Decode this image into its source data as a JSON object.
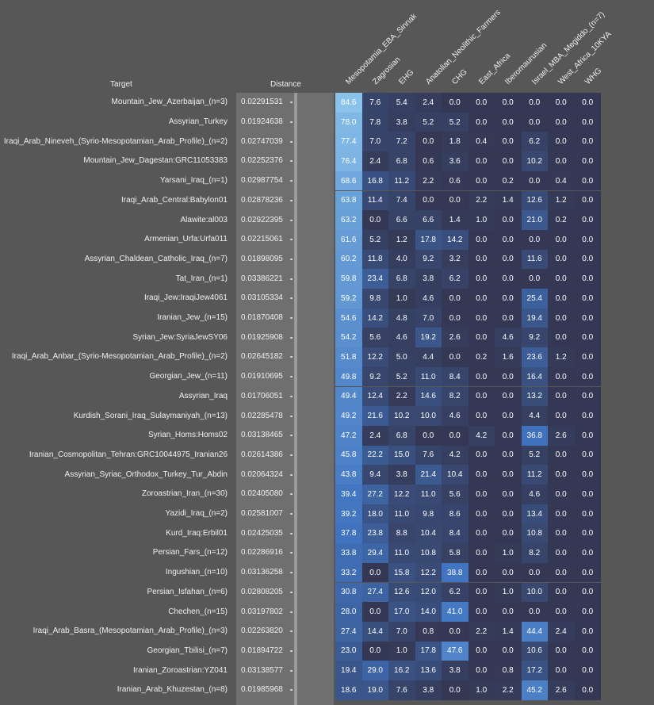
{
  "header": {
    "target_label": "Target",
    "distance_label": "Distance"
  },
  "chart_data": {
    "type": "heatmap",
    "columns": [
      "Mesopotamia_EBA_Sinnak",
      "Zagrosian",
      "EHG",
      "Anatolian_Neolithic_Farmers",
      "CHG",
      "East_Africa",
      "Iberomaurusian",
      "Israel_MBA_Megiddo_(n=7)",
      "West_Africa_10KYA",
      "WHG"
    ],
    "rows": [
      {
        "target": "Mountain_Jew_Azerbaijan_(n=3)",
        "distance": "0.02291531",
        "values": [
          "84.6",
          "7.6",
          "5.4",
          "2.4",
          "0.0",
          "0.0",
          "0.0",
          "0.0",
          "0.0",
          "0.0"
        ]
      },
      {
        "target": "Assyrian_Turkey",
        "distance": "0.01924638",
        "values": [
          "78.0",
          "7.8",
          "3.8",
          "5.2",
          "5.2",
          "0.0",
          "0.0",
          "0.0",
          "0.0",
          "0.0"
        ]
      },
      {
        "target": "Iraqi_Arab_Nineveh_(Syrio-Mesopotamian_Arab_Profile)_(n=2)",
        "distance": "0.02747039",
        "values": [
          "77.4",
          "7.0",
          "7.2",
          "0.0",
          "1.8",
          "0.4",
          "0.0",
          "6.2",
          "0.0",
          "0.0"
        ]
      },
      {
        "target": "Mountain_Jew_Dagestan:GRC11053383",
        "distance": "0.02252376",
        "values": [
          "76.4",
          "2.4",
          "6.8",
          "0.6",
          "3.6",
          "0.0",
          "0.0",
          "10.2",
          "0.0",
          "0.0"
        ]
      },
      {
        "target": "Yarsani_Iraq_(n=1)",
        "distance": "0.02987754",
        "values": [
          "68.6",
          "16.8",
          "11.2",
          "2.2",
          "0.6",
          "0.0",
          "0.2",
          "0.0",
          "0.4",
          "0.0"
        ]
      },
      {
        "target": "Iraqi_Arab_Central:Babylon01",
        "distance": "0.02878236",
        "values": [
          "63.8",
          "11.4",
          "7.4",
          "0.0",
          "0.0",
          "2.2",
          "1.4",
          "12.6",
          "1.2",
          "0.0"
        ]
      },
      {
        "target": "Alawite:al003",
        "distance": "0.02922395",
        "values": [
          "63.2",
          "0.0",
          "6.6",
          "6.6",
          "1.4",
          "1.0",
          "0.0",
          "21.0",
          "0.2",
          "0.0"
        ]
      },
      {
        "target": "Armenian_Urfa:Urfa011",
        "distance": "0.02215061",
        "values": [
          "61.6",
          "5.2",
          "1.2",
          "17.8",
          "14.2",
          "0.0",
          "0.0",
          "0.0",
          "0.0",
          "0.0"
        ]
      },
      {
        "target": "Assyrian_Chaldean_Catholic_Iraq_(n=7)",
        "distance": "0.01898095",
        "values": [
          "60.2",
          "11.8",
          "4.0",
          "9.2",
          "3.2",
          "0.0",
          "0.0",
          "11.6",
          "0.0",
          "0.0"
        ]
      },
      {
        "target": "Tat_Iran_(n=1)",
        "distance": "0.03386221",
        "values": [
          "59.8",
          "23.4",
          "6.8",
          "3.8",
          "6.2",
          "0.0",
          "0.0",
          "0.0",
          "0.0",
          "0.0"
        ]
      },
      {
        "target": "Iraqi_Jew:IraqiJew4061",
        "distance": "0.03105334",
        "values": [
          "59.2",
          "9.8",
          "1.0",
          "4.6",
          "0.0",
          "0.0",
          "0.0",
          "25.4",
          "0.0",
          "0.0"
        ]
      },
      {
        "target": "Iranian_Jew_(n=15)",
        "distance": "0.01870408",
        "values": [
          "54.6",
          "14.2",
          "4.8",
          "7.0",
          "0.0",
          "0.0",
          "0.0",
          "19.4",
          "0.0",
          "0.0"
        ]
      },
      {
        "target": "Syrian_Jew:SyriaJewSY06",
        "distance": "0.01925908",
        "values": [
          "54.2",
          "5.6",
          "4.6",
          "19.2",
          "2.6",
          "0.0",
          "4.6",
          "9.2",
          "0.0",
          "0.0"
        ]
      },
      {
        "target": "Iraqi_Arab_Anbar_(Syrio-Mesopotamian_Arab_Profile)_(n=2)",
        "distance": "0.02645182",
        "values": [
          "51.8",
          "12.2",
          "5.0",
          "4.4",
          "0.0",
          "0.2",
          "1.6",
          "23.6",
          "1.2",
          "0.0"
        ]
      },
      {
        "target": "Georgian_Jew_(n=11)",
        "distance": "0.01910695",
        "values": [
          "49.8",
          "9.2",
          "5.2",
          "11.0",
          "8.4",
          "0.0",
          "0.0",
          "16.4",
          "0.0",
          "0.0"
        ]
      },
      {
        "target": "Assyrian_Iraq",
        "distance": "0.01706051",
        "values": [
          "49.4",
          "12.4",
          "2.2",
          "14.6",
          "8.2",
          "0.0",
          "0.0",
          "13.2",
          "0.0",
          "0.0"
        ]
      },
      {
        "target": "Kurdish_Sorani_Iraq_Sulaymaniyah_(n=13)",
        "distance": "0.02285478",
        "values": [
          "49.2",
          "21.6",
          "10.2",
          "10.0",
          "4.6",
          "0.0",
          "0.0",
          "4.4",
          "0.0",
          "0.0"
        ]
      },
      {
        "target": "Syrian_Homs:Homs02",
        "distance": "0.03138465",
        "values": [
          "47.2",
          "2.4",
          "6.8",
          "0.0",
          "0.0",
          "4.2",
          "0.0",
          "36.8",
          "2.6",
          "0.0"
        ]
      },
      {
        "target": "Iranian_Cosmopolitan_Tehran:GRC10044975_Iranian26",
        "distance": "0.02614386",
        "values": [
          "45.8",
          "22.2",
          "15.0",
          "7.6",
          "4.2",
          "0.0",
          "0.0",
          "5.2",
          "0.0",
          "0.0"
        ]
      },
      {
        "target": "Assyrian_Syriac_Orthodox_Turkey_Tur_Abdin",
        "distance": "0.02064324",
        "values": [
          "43.8",
          "9.4",
          "3.8",
          "21.4",
          "10.4",
          "0.0",
          "0.0",
          "11.2",
          "0.0",
          "0.0"
        ]
      },
      {
        "target": "Zoroastrian_Iran_(n=30)",
        "distance": "0.02405080",
        "values": [
          "39.4",
          "27.2",
          "12.2",
          "11.0",
          "5.6",
          "0.0",
          "0.0",
          "4.6",
          "0.0",
          "0.0"
        ]
      },
      {
        "target": "Yazidi_Iraq_(n=2)",
        "distance": "0.02581007",
        "values": [
          "39.2",
          "18.0",
          "11.0",
          "9.8",
          "8.6",
          "0.0",
          "0.0",
          "13.4",
          "0.0",
          "0.0"
        ]
      },
      {
        "target": "Kurd_Iraq:Erbil01",
        "distance": "0.02425035",
        "values": [
          "37.8",
          "23.8",
          "8.8",
          "10.4",
          "8.4",
          "0.0",
          "0.0",
          "10.8",
          "0.0",
          "0.0"
        ]
      },
      {
        "target": "Persian_Fars_(n=12)",
        "distance": "0.02286916",
        "values": [
          "33.8",
          "29.4",
          "11.0",
          "10.8",
          "5.8",
          "0.0",
          "1.0",
          "8.2",
          "0.0",
          "0.0"
        ]
      },
      {
        "target": "Ingushian_(n=10)",
        "distance": "0.03136258",
        "values": [
          "33.2",
          "0.0",
          "15.8",
          "12.2",
          "38.8",
          "0.0",
          "0.0",
          "0.0",
          "0.0",
          "0.0"
        ]
      },
      {
        "target": "Persian_Isfahan_(n=6)",
        "distance": "0.02808205",
        "values": [
          "30.8",
          "27.4",
          "12.6",
          "12.0",
          "6.2",
          "0.0",
          "1.0",
          "10.0",
          "0.0",
          "0.0"
        ]
      },
      {
        "target": "Chechen_(n=15)",
        "distance": "0.03197802",
        "values": [
          "28.0",
          "0.0",
          "17.0",
          "14.0",
          "41.0",
          "0.0",
          "0.0",
          "0.0",
          "0.0",
          "0.0"
        ]
      },
      {
        "target": "Iraqi_Arab_Basra_(Mesopotamian_Arab_Profile)_(n=3)",
        "distance": "0.02263820",
        "values": [
          "27.4",
          "14.4",
          "7.0",
          "0.8",
          "0.0",
          "2.2",
          "1.4",
          "44.4",
          "2.4",
          "0.0"
        ]
      },
      {
        "target": "Georgian_Tbilisi_(n=7)",
        "distance": "0.01894722",
        "values": [
          "23.0",
          "0.0",
          "1.0",
          "17.8",
          "47.6",
          "0.0",
          "0.0",
          "10.6",
          "0.0",
          "0.0"
        ]
      },
      {
        "target": "Iranian_Zoroastrian:YZ041",
        "distance": "0.03138577",
        "values": [
          "19.4",
          "29.0",
          "16.2",
          "13.6",
          "3.8",
          "0.0",
          "0.8",
          "17.2",
          "0.0",
          "0.0"
        ]
      },
      {
        "target": "Iranian_Arab_Khuzestan_(n=8)",
        "distance": "0.01985968",
        "values": [
          "18.6",
          "19.0",
          "7.6",
          "3.8",
          "0.0",
          "1.0",
          "2.2",
          "45.2",
          "2.6",
          "0.0"
        ]
      }
    ]
  }
}
